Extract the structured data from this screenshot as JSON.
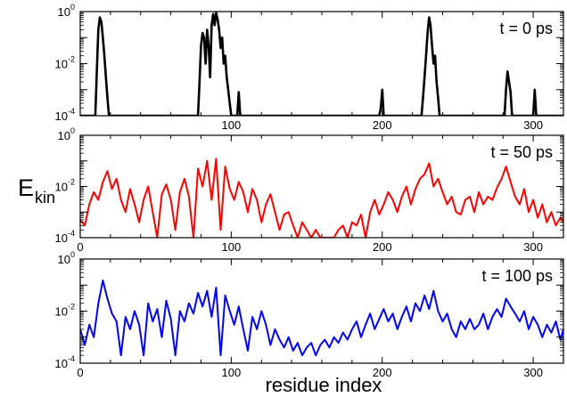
{
  "chart_data": [
    {
      "type": "line",
      "panel_label": "t = 0 ps",
      "color": "#000000",
      "yscale": "log",
      "xlim": [
        0,
        320
      ],
      "ylim": [
        0.0001,
        1
      ],
      "x_ticks": [
        "100",
        "200",
        "300"
      ],
      "y_ticks": [
        {
          "base": "10",
          "exp": "0"
        },
        {
          "base": "10",
          "exp": "-2"
        },
        {
          "base": "10",
          "exp": "-4"
        }
      ],
      "series": [
        {
          "x": [
            0,
            10,
            11,
            12,
            13,
            14,
            15,
            16,
            17,
            18,
            19,
            78,
            79,
            80,
            81,
            82,
            83,
            84,
            85,
            86,
            87,
            88,
            89,
            90,
            91,
            92,
            93,
            94,
            95,
            96,
            97,
            98,
            99,
            100,
            101,
            104,
            105,
            106,
            198,
            199,
            200,
            201,
            226,
            227,
            228,
            229,
            230,
            231,
            232,
            233,
            234,
            235,
            236,
            237,
            238,
            281,
            282,
            283,
            284,
            285,
            286,
            300,
            301,
            302,
            320
          ],
          "y": [
            0.0001,
            0.0001,
            0.005,
            0.2,
            0.6,
            0.4,
            0.1,
            0.02,
            0.003,
            0.0005,
            0.0001,
            0.0001,
            0.002,
            0.05,
            0.15,
            0.1,
            0.01,
            0.2,
            0.05,
            0.003,
            0.3,
            0.8,
            0.3,
            0.9,
            0.5,
            0.2,
            0.04,
            0.1,
            0.01,
            0.02,
            0.003,
            0.001,
            0.0003,
            0.0001,
            0.0001,
            0.0001,
            0.0008,
            0.0001,
            0.0001,
            0.0002,
            0.001,
            0.0001,
            0.0001,
            0.0005,
            0.003,
            0.02,
            0.15,
            0.6,
            0.3,
            0.05,
            0.01,
            0.02,
            0.002,
            0.0005,
            0.0001,
            0.0001,
            0.001,
            0.005,
            0.002,
            0.0008,
            0.0001,
            0.0001,
            0.001,
            0.0001,
            0.0001
          ]
        }
      ]
    },
    {
      "type": "line",
      "panel_label": "t = 50 ps",
      "color": "#ff0000",
      "yscale": "log",
      "xlim": [
        0,
        320
      ],
      "ylim": [
        0.0001,
        1
      ],
      "x_ticks": [
        "0",
        "100",
        "200",
        "300"
      ],
      "y_ticks": [
        {
          "base": "10",
          "exp": "0"
        },
        {
          "base": "10",
          "exp": "-2"
        },
        {
          "base": "10",
          "exp": "-4"
        }
      ],
      "series": [
        {
          "x": [
            0,
            3,
            6,
            9,
            12,
            15,
            18,
            21,
            24,
            27,
            30,
            33,
            36,
            39,
            42,
            45,
            48,
            51,
            54,
            57,
            60,
            63,
            66,
            69,
            72,
            75,
            78,
            81,
            84,
            87,
            90,
            93,
            96,
            99,
            102,
            105,
            108,
            111,
            114,
            117,
            120,
            123,
            126,
            129,
            132,
            135,
            138,
            141,
            144,
            147,
            150,
            153,
            156,
            159,
            162,
            165,
            168,
            171,
            174,
            177,
            180,
            183,
            186,
            189,
            192,
            195,
            198,
            201,
            204,
            207,
            210,
            213,
            216,
            219,
            222,
            225,
            228,
            231,
            234,
            237,
            240,
            243,
            246,
            249,
            252,
            255,
            258,
            261,
            264,
            267,
            270,
            273,
            276,
            279,
            282,
            285,
            288,
            291,
            294,
            297,
            300,
            303,
            306,
            309,
            312,
            315,
            318,
            320
          ],
          "y": [
            0.0005,
            0.0003,
            0.002,
            0.006,
            0.003,
            0.015,
            0.04,
            0.008,
            0.02,
            0.003,
            0.001,
            0.008,
            0.002,
            0.0004,
            0.003,
            0.01,
            0.001,
            0.0001,
            0.005,
            0.012,
            0.003,
            0.0002,
            0.006,
            0.02,
            0.004,
            0.0001,
            0.05,
            0.01,
            0.1,
            0.003,
            0.12,
            0.0002,
            0.06,
            0.008,
            0.003,
            0.015,
            0.006,
            0.001,
            0.008,
            0.003,
            0.0004,
            0.002,
            0.005,
            0.001,
            0.0002,
            0.0008,
            0.001,
            0.0003,
            0.0001,
            0.0004,
            0.0002,
            0.0001,
            0.0002,
            0.0001,
            0.0001,
            0.0001,
            0.0001,
            0.0002,
            0.0003,
            0.0001,
            0.0004,
            0.0003,
            0.0008,
            0.0001,
            0.001,
            0.003,
            0.0008,
            0.002,
            0.006,
            0.003,
            0.001,
            0.004,
            0.01,
            0.002,
            0.008,
            0.02,
            0.03,
            0.08,
            0.01,
            0.02,
            0.006,
            0.002,
            0.004,
            0.001,
            0.0008,
            0.003,
            0.004,
            0.001,
            0.006,
            0.002,
            0.004,
            0.003,
            0.009,
            0.02,
            0.06,
            0.015,
            0.004,
            0.002,
            0.008,
            0.001,
            0.003,
            0.0006,
            0.002,
            0.0004,
            0.001,
            0.0003,
            0.0006,
            0.0004
          ]
        }
      ]
    },
    {
      "type": "line",
      "panel_label": "t = 100 ps",
      "color": "#0000ff",
      "yscale": "log",
      "xlim": [
        0,
        320
      ],
      "ylim": [
        0.0001,
        1
      ],
      "x_ticks": [
        "0",
        "100",
        "200",
        "300"
      ],
      "y_ticks": [
        {
          "base": "10",
          "exp": "0"
        },
        {
          "base": "10",
          "exp": "-2"
        },
        {
          "base": "10",
          "exp": "-4"
        }
      ],
      "series": [
        {
          "x": [
            0,
            3,
            6,
            9,
            12,
            15,
            18,
            21,
            24,
            27,
            30,
            33,
            36,
            39,
            42,
            45,
            48,
            51,
            54,
            57,
            60,
            63,
            66,
            69,
            72,
            75,
            78,
            81,
            84,
            87,
            90,
            93,
            96,
            99,
            102,
            105,
            108,
            111,
            114,
            117,
            120,
            123,
            126,
            129,
            132,
            135,
            138,
            141,
            144,
            147,
            150,
            153,
            156,
            159,
            162,
            165,
            168,
            171,
            174,
            177,
            180,
            183,
            186,
            189,
            192,
            195,
            198,
            201,
            204,
            207,
            210,
            213,
            216,
            219,
            222,
            225,
            228,
            231,
            234,
            237,
            240,
            243,
            246,
            249,
            252,
            255,
            258,
            261,
            264,
            267,
            270,
            273,
            276,
            279,
            282,
            285,
            288,
            291,
            294,
            297,
            300,
            303,
            306,
            309,
            312,
            315,
            318,
            320
          ],
          "y": [
            0.002,
            0.0005,
            0.003,
            0.001,
            0.02,
            0.15,
            0.03,
            0.008,
            0.004,
            0.0002,
            0.006,
            0.002,
            0.01,
            0.003,
            0.0002,
            0.02,
            0.004,
            0.012,
            0.001,
            0.025,
            0.005,
            0.0002,
            0.01,
            0.004,
            0.02,
            0.008,
            0.05,
            0.015,
            0.06,
            0.006,
            0.08,
            0.0002,
            0.04,
            0.01,
            0.003,
            0.015,
            0.002,
            0.0003,
            0.006,
            0.002,
            0.01,
            0.003,
            0.0005,
            0.002,
            0.0008,
            0.0004,
            0.001,
            0.0003,
            0.0006,
            0.0002,
            0.0004,
            0.0006,
            0.0002,
            0.0005,
            0.0008,
            0.0004,
            0.001,
            0.0006,
            0.0015,
            0.0008,
            0.002,
            0.004,
            0.001,
            0.003,
            0.008,
            0.002,
            0.005,
            0.012,
            0.004,
            0.008,
            0.002,
            0.006,
            0.015,
            0.004,
            0.02,
            0.01,
            0.04,
            0.012,
            0.06,
            0.01,
            0.004,
            0.008,
            0.002,
            0.001,
            0.004,
            0.002,
            0.005,
            0.002,
            0.003,
            0.008,
            0.002,
            0.006,
            0.012,
            0.006,
            0.03,
            0.015,
            0.008,
            0.004,
            0.01,
            0.002,
            0.006,
            0.003,
            0.001,
            0.003,
            0.0015,
            0.004,
            0.0008,
            0.002
          ]
        }
      ]
    }
  ],
  "ylabel": {
    "main": "E",
    "sub": "kin"
  },
  "xlabel": "residue index"
}
